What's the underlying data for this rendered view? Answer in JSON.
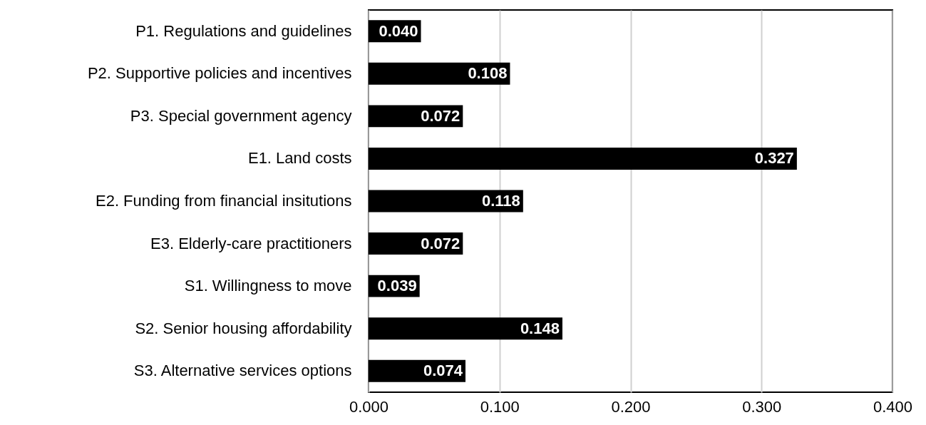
{
  "chart_data": {
    "type": "bar",
    "orientation": "horizontal",
    "categories": [
      "P1. Regulations and guidelines",
      "P2. Supportive policies and incentives",
      "P3. Special government agency",
      "E1. Land costs",
      "E2. Funding from financial insitutions",
      "E3. Elderly-care practitioners",
      "S1. Willingness to move",
      "S2. Senior housing affordability",
      "S3. Alternative services options"
    ],
    "values": [
      0.04,
      0.108,
      0.072,
      0.327,
      0.118,
      0.072,
      0.039,
      0.148,
      0.074
    ],
    "value_labels": [
      "0.040",
      "0.108",
      "0.072",
      "0.327",
      "0.118",
      "0.072",
      "0.039",
      "0.148",
      "0.074"
    ],
    "color": "#000000",
    "xlim": [
      0,
      0.4
    ],
    "xticks": [
      {
        "value": 0,
        "label": "0.000"
      },
      {
        "value": 0.1,
        "label": "0.100"
      },
      {
        "value": 0.2,
        "label": "0.200"
      },
      {
        "value": 0.3,
        "label": "0.300"
      },
      {
        "value": 0.4,
        "label": "0.400"
      }
    ],
    "grid": "x"
  }
}
